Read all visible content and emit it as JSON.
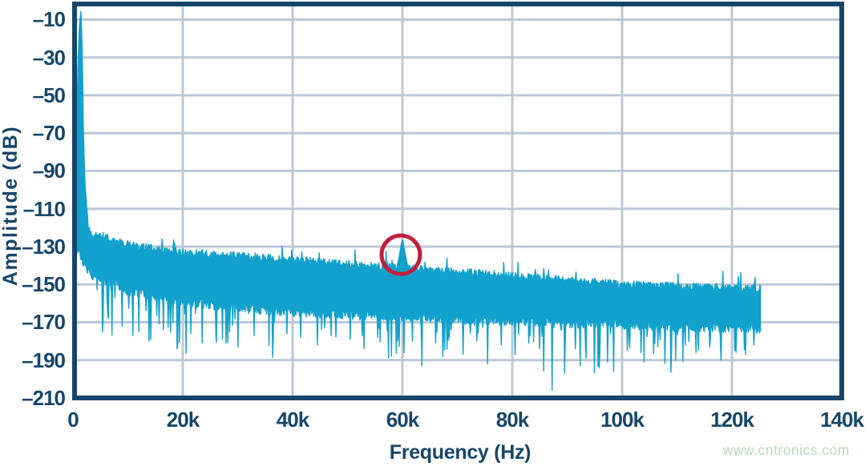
{
  "page": {
    "background": "#ffffff"
  },
  "watermark": {
    "text": "www.cntronics.com",
    "color": "#b7dcb7"
  },
  "chart_data": {
    "type": "line",
    "title": "",
    "xlabel": "Frequency (Hz)",
    "ylabel": "Amplitude (dB)",
    "xlim": [
      0,
      140000
    ],
    "ylim": [
      -210,
      -1.75
    ],
    "grid": true,
    "legend": "none",
    "x_tick_values": [
      0,
      20000,
      40000,
      60000,
      80000,
      100000,
      120000,
      140000
    ],
    "x_tick_labels": [
      "0",
      "20k",
      "40k",
      "60k",
      "80k",
      "100k",
      "120k",
      "140k"
    ],
    "y_tick_values": [
      -10,
      -30,
      -50,
      -70,
      -90,
      -110,
      -130,
      -150,
      -170,
      -190,
      -210
    ],
    "y_tick_labels": [
      "–10",
      "–30",
      "–50",
      "–70",
      "–90",
      "–110",
      "–130",
      "–150",
      "–170",
      "–190",
      "–210"
    ],
    "colors": {
      "trace": "#12a1cd",
      "grid": "#bcc8d6",
      "axis": "#17466a",
      "annotation": "#c0203c"
    },
    "signal": {
      "fundamental": {
        "freq_hz": 1460,
        "amp_db": -6,
        "skirt_db_points": [
          [
            150,
            -122
          ],
          [
            450,
            -95
          ],
          [
            700,
            -62
          ],
          [
            900,
            -36
          ],
          [
            1150,
            -14
          ],
          [
            1460,
            -5.5
          ],
          [
            1700,
            -28
          ],
          [
            1900,
            -68
          ],
          [
            2150,
            -95
          ],
          [
            2400,
            -105
          ],
          [
            2700,
            -117
          ],
          [
            3000,
            -122
          ],
          [
            3600,
            -125
          ],
          [
            4300,
            -124
          ],
          [
            5000,
            -124.5
          ]
        ]
      },
      "spur": {
        "freq_hz": 60000,
        "amp_db": -126.3,
        "shape_db_points": [
          [
            59000,
            -141
          ],
          [
            59350,
            -136.5
          ],
          [
            59650,
            -131
          ],
          [
            59870,
            -127.4
          ],
          [
            60000,
            -126.3
          ],
          [
            60130,
            -127.6
          ],
          [
            60400,
            -132.5
          ],
          [
            60750,
            -137.5
          ],
          [
            61050,
            -142
          ],
          [
            61180,
            -143
          ],
          [
            61320,
            -141.3
          ],
          [
            61550,
            -143.5
          ]
        ]
      },
      "noise_floor": {
        "fmin_hz": 150,
        "fmax_hz": 125200,
        "bins": 1150,
        "seed": 20240613,
        "freqs_hz": [
          5000,
          8000,
          10000,
          15000,
          20000,
          25000,
          30000,
          40000,
          50000,
          60000,
          70000,
          80000,
          90000,
          100000,
          110000,
          120000,
          125200
        ],
        "top_db": [
          -124,
          -127.5,
          -129,
          -131.5,
          -133,
          -134,
          -135,
          -137,
          -139.5,
          -141.5,
          -143.5,
          -145.5,
          -148,
          -150,
          -151,
          -152,
          -152.5
        ],
        "bottom_db": [
          -146,
          -150,
          -153,
          -156,
          -159,
          -160.5,
          -162,
          -164,
          -165.5,
          -166.5,
          -168,
          -169,
          -170,
          -171,
          -172,
          -172.5,
          -173
        ],
        "left_bottom_db_points": [
          [
            150,
            -122
          ],
          [
            500,
            -128
          ],
          [
            1000,
            -133
          ],
          [
            1800,
            -138
          ],
          [
            2400,
            -141
          ],
          [
            3000,
            -144
          ]
        ],
        "top_jitter_db": 4.4,
        "bottom_jitter_db": 6,
        "needle_prob": 0.1,
        "deep_needles": [
          [
            6500,
            -168
          ],
          [
            9000,
            -172
          ],
          [
            12000,
            -175
          ],
          [
            14200,
            -179
          ],
          [
            16500,
            -174
          ],
          [
            19000,
            -184
          ],
          [
            21500,
            -176
          ],
          [
            23500,
            -181
          ],
          [
            26000,
            -177
          ],
          [
            28500,
            -175
          ],
          [
            30000,
            -183
          ],
          [
            33000,
            -177
          ],
          [
            36500,
            -180
          ],
          [
            39000,
            -176
          ],
          [
            41500,
            -178
          ],
          [
            44500,
            -182
          ],
          [
            47000,
            -177
          ],
          [
            50500,
            -179
          ],
          [
            53000,
            -184
          ],
          [
            55500,
            -178
          ],
          [
            58000,
            -188
          ],
          [
            61800,
            -180
          ],
          [
            63500,
            -193
          ],
          [
            66000,
            -181
          ],
          [
            68500,
            -178
          ],
          [
            71000,
            -187
          ],
          [
            73500,
            -180
          ],
          [
            75500,
            -192
          ],
          [
            78000,
            -182
          ],
          [
            80500,
            -187
          ],
          [
            83000,
            -181
          ],
          [
            85000,
            -184
          ],
          [
            87200,
            -206
          ],
          [
            89500,
            -197
          ],
          [
            91500,
            -184
          ],
          [
            93500,
            -189
          ],
          [
            96000,
            -186
          ],
          [
            98500,
            -196
          ],
          [
            101000,
            -185
          ],
          [
            104000,
            -191
          ],
          [
            106500,
            -183
          ],
          [
            109000,
            -187
          ],
          [
            111500,
            -182
          ],
          [
            113500,
            -186
          ],
          [
            116000,
            -183
          ],
          [
            118000,
            -190
          ],
          [
            120500,
            -185
          ],
          [
            122500,
            -187
          ],
          [
            124000,
            -182
          ]
        ]
      }
    },
    "annotation_ellipse": {
      "center_freq_hz": 59700,
      "center_amp_db": -134.3,
      "rx_hz": 3500,
      "ry_db": 19,
      "stroke_px": 5,
      "color": "#c0203c"
    }
  }
}
